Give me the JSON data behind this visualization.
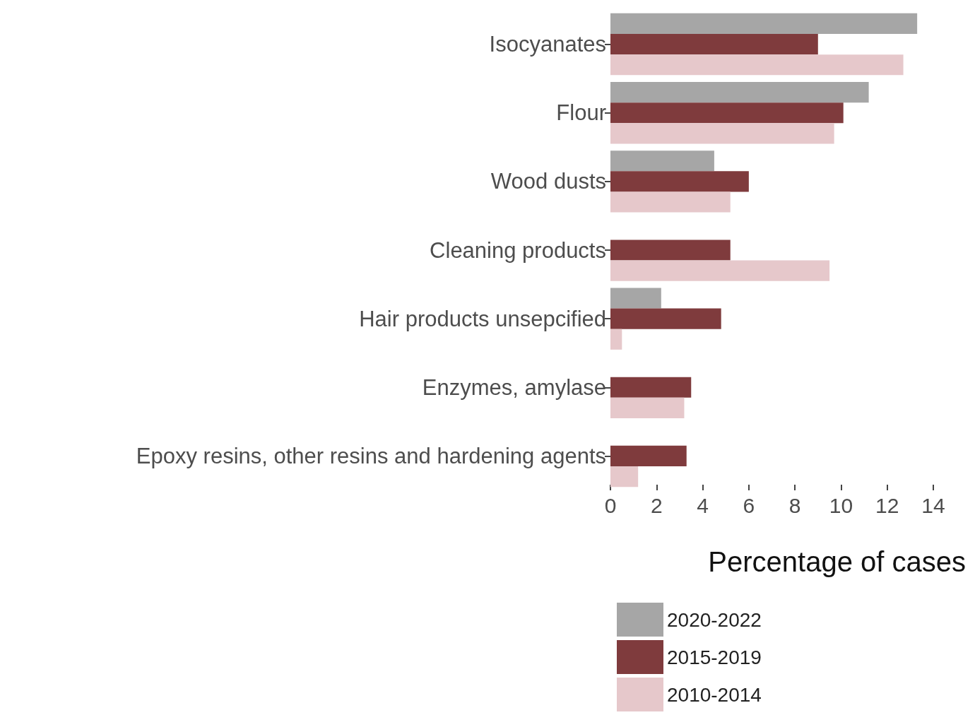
{
  "chart_data": {
    "type": "bar",
    "orientation": "horizontal",
    "xlabel": "Percentage of cases",
    "categories": [
      "Isocyanates",
      "Flour",
      "Wood dusts",
      "Cleaning products",
      "Hair products unsepcified",
      "Enzymes, amylase",
      "Epoxy resins, other resins and hardening agents"
    ],
    "series": [
      {
        "name": "2020-2022",
        "color": "#a6a6a6",
        "values": [
          13.3,
          11.2,
          4.5,
          null,
          2.2,
          null,
          null
        ]
      },
      {
        "name": "2015-2019",
        "color": "#7f3b3d",
        "values": [
          9.0,
          10.1,
          6.0,
          5.2,
          4.8,
          3.5,
          3.3
        ]
      },
      {
        "name": "2010-2014",
        "color": "#e6c8cb",
        "values": [
          12.7,
          9.7,
          5.2,
          9.5,
          0.5,
          3.2,
          1.2
        ]
      }
    ],
    "xlim": [
      0,
      14
    ],
    "xticks": [
      0,
      2,
      4,
      6,
      8,
      10,
      12,
      14
    ],
    "grid": false,
    "legend": "bottom"
  }
}
